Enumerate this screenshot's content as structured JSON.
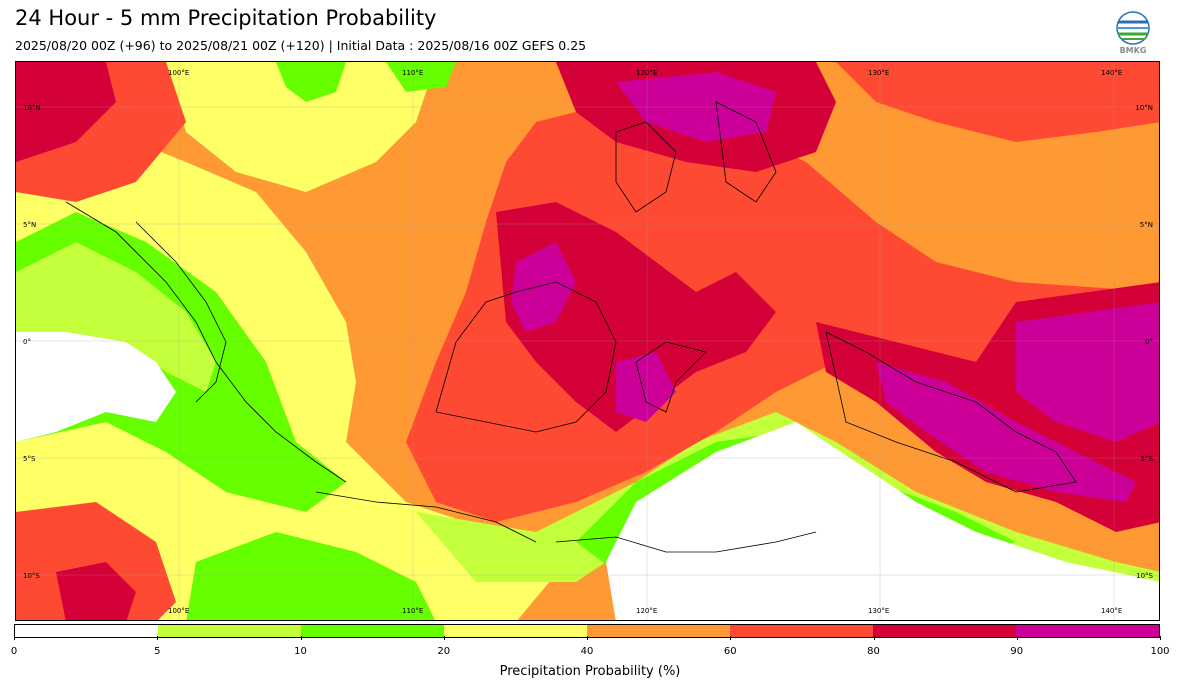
{
  "header": {
    "title": "24 Hour - 5 mm Precipitation Probability",
    "subtitle": "2025/08/20 00Z (+96) to 2025/08/21 00Z (+120) | Initial Data : 2025/08/16 00Z GEFS 0.25",
    "logo_text": "BMKG"
  },
  "map": {
    "lon_labels": [
      "100°E",
      "110°E",
      "120°E",
      "130°E",
      "140°E"
    ],
    "lat_labels": [
      "10°N",
      "5°N",
      "0°",
      "5°S",
      "10°S"
    ]
  },
  "legend": {
    "label": "Precipitation Probability (%)",
    "ticks": [
      "0",
      "5",
      "10",
      "20",
      "40",
      "60",
      "80",
      "90",
      "100"
    ],
    "colors": [
      "#ffffff",
      "#c4ff3c",
      "#66ff00",
      "#ffff66",
      "#ff9933",
      "#ff4a33",
      "#d40038",
      "#cc0099"
    ]
  }
}
